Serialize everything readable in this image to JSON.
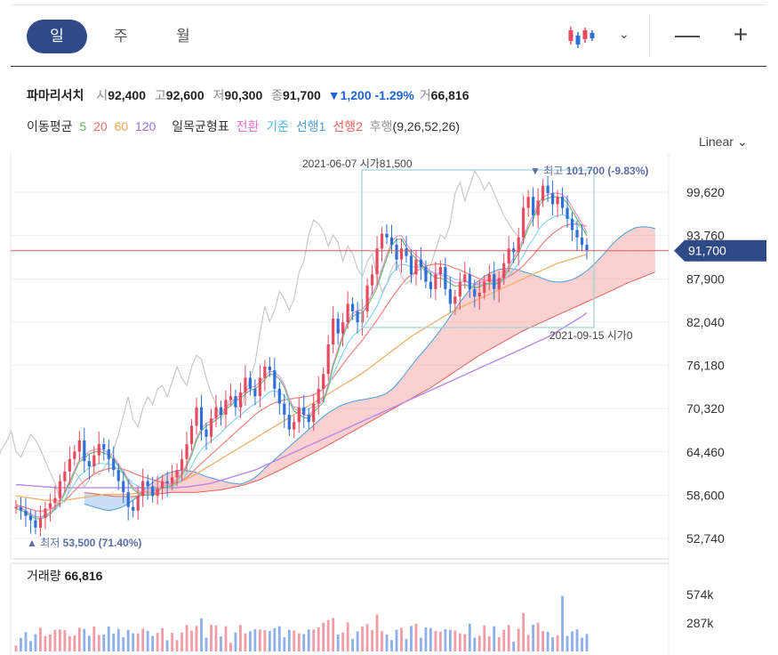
{
  "periods": [
    {
      "label": "일",
      "active": true
    },
    {
      "label": "주",
      "active": false
    },
    {
      "label": "월",
      "active": false
    }
  ],
  "zoom": {
    "minus": "—",
    "plus": "+"
  },
  "stock": {
    "name": "파마리서치",
    "open_label": "시",
    "open": "92,400",
    "high_label": "고",
    "high": "92,600",
    "low_label": "저",
    "low": "90,300",
    "close_label": "종",
    "close": "91,700",
    "change": "▼1,200",
    "change_pct": "-1.29%",
    "volume_label": "거",
    "volume": "66,816"
  },
  "indicators": {
    "ma_label": "이동평균",
    "ma": [
      {
        "label": "5",
        "color": "#5cb85c"
      },
      {
        "label": "20",
        "color": "#f07070"
      },
      {
        "label": "60",
        "color": "#f0a050"
      },
      {
        "label": "120",
        "color": "#9b6fe0"
      }
    ],
    "ichimoku_label": "일목균형표",
    "ichimoku": [
      {
        "label": "전환",
        "color": "#e86fd1"
      },
      {
        "label": "기준",
        "color": "#4db8e8"
      },
      {
        "label": "선행1",
        "color": "#4a9ed8"
      },
      {
        "label": "선행2",
        "color": "#e86060"
      },
      {
        "label": "후행",
        "color": "#999999"
      }
    ],
    "params": "(9,26,52,26)"
  },
  "scale_label": "Linear",
  "chart_data": {
    "type": "candlestick",
    "y_ticks": [
      "99,620",
      "93,760",
      "87,900",
      "82,040",
      "76,180",
      "70,320",
      "64,460",
      "58,600",
      "52,740"
    ],
    "y_values": [
      99620,
      93760,
      87900,
      82040,
      76180,
      70320,
      64460,
      58600,
      52740
    ],
    "ylim": [
      50800,
      105700
    ],
    "current_price": "91,700",
    "high_marker": {
      "prefix": "▼ 최고",
      "value": "101,700",
      "pct": "(-9.83%)"
    },
    "low_marker": {
      "prefix": "▲ 최저",
      "value": "53,500",
      "pct": "(71.40%)"
    },
    "range_start": "2021-06-07 시가81,500",
    "range_end": "2021-09-15 시가0",
    "closes": [
      57000,
      56500,
      55800,
      55200,
      54200,
      55500,
      56800,
      57500,
      58200,
      60500,
      61800,
      63500,
      64500,
      66000,
      63200,
      62500,
      64000,
      65500,
      64800,
      63500,
      62000,
      60500,
      59000,
      57000,
      56500,
      58500,
      60500,
      59800,
      58500,
      59500,
      60500,
      60200,
      61000,
      62000,
      63500,
      65500,
      68000,
      70500,
      67500,
      66500,
      69000,
      70500,
      69500,
      71500,
      72000,
      70500,
      72500,
      74500,
      73000,
      72000,
      74500,
      76000,
      75500,
      73000,
      71000,
      69500,
      67500,
      68500,
      70500,
      69500,
      68500,
      71000,
      73000,
      75000,
      79000,
      82500,
      80500,
      82000,
      84500,
      83500,
      82000,
      83500,
      87000,
      88500,
      92000,
      94000,
      93500,
      92500,
      90500,
      92000,
      91000,
      88500,
      90500,
      89500,
      87500,
      86500,
      88500,
      89500,
      86500,
      84500,
      85500,
      87500,
      88500,
      86500,
      85500,
      86000,
      87500,
      88500,
      86500,
      88000,
      90000,
      92000,
      91500,
      93500,
      97500,
      99000,
      96500,
      98500,
      100500,
      99500,
      98000,
      99000,
      97500,
      96000,
      94500,
      93500,
      92500,
      91700
    ],
    "ma5": [
      56800,
      56600,
      56200,
      55800,
      55400,
      55400,
      55600,
      56000,
      56800,
      57700,
      58800,
      60300,
      61700,
      63100,
      63600,
      64200,
      64400,
      64600,
      64300,
      64000,
      63500,
      62500,
      61600,
      60400,
      59400,
      58900,
      58700,
      58600,
      58700,
      59100,
      59600,
      59700,
      59900,
      60500,
      61300,
      62500,
      64000,
      66000,
      67300,
      68000,
      68300,
      68800,
      69300,
      70200,
      70700,
      71400,
      71700,
      72300,
      72800,
      73000,
      73500,
      74300,
      75000,
      74900,
      74300,
      73200,
      71300,
      70000,
      69600,
      69100,
      69000,
      69800,
      70500,
      71200,
      73200,
      76000,
      78000,
      80000,
      81700,
      82800,
      83200,
      83300,
      84200,
      85400,
      86700,
      88800,
      90700,
      92400,
      93200,
      93300,
      92200,
      91300,
      90600,
      90100,
      89100,
      88500,
      88000,
      88000,
      87700,
      87300,
      86900,
      87000,
      87100,
      86900,
      86700,
      86800,
      87200,
      87300,
      87300,
      87300,
      88000,
      89200,
      90300,
      91400,
      93000,
      94800,
      96000,
      97500,
      98500,
      98800,
      99000,
      99000,
      98800,
      98200,
      97100,
      96000,
      94900,
      93700
    ],
    "ma20": [
      57300,
      57100,
      56900,
      56700,
      56500,
      56400,
      56500,
      56700,
      57000,
      57400,
      57900,
      58500,
      59200,
      59900,
      60500,
      61000,
      61400,
      61800,
      62000,
      62200,
      62300,
      62200,
      62100,
      61900,
      61600,
      61300,
      61100,
      60900,
      60700,
      60500,
      60300,
      60200,
      60100,
      60300,
      60600,
      61000,
      61600,
      62300,
      62900,
      63500,
      64100,
      64700,
      65300,
      65900,
      66500,
      67100,
      67700,
      68300,
      68900,
      69500,
      70000,
      70400,
      70800,
      71100,
      71300,
      71500,
      71600,
      71700,
      71800,
      71900,
      72000,
      72200,
      72500,
      73000,
      73700,
      74500,
      75400,
      76300,
      77200,
      78000,
      78800,
      79600,
      80500,
      81400,
      82300,
      83300,
      84300,
      85300,
      86200,
      87100,
      87900,
      88400,
      88900,
      89300,
      89600,
      89800,
      89900,
      89900,
      89800,
      89600,
      89300,
      89100,
      88800,
      88500,
      88200,
      87900,
      87700,
      87600,
      87600,
      87700,
      87900,
      88200,
      88600,
      89100,
      89700,
      90400,
      91100,
      91900,
      92700,
      93400,
      94000,
      94500,
      94900,
      95200,
      95300,
      95300,
      95200,
      95000
    ],
    "ma60": [
      58500,
      58400,
      58300,
      58200,
      58100,
      58000,
      57900,
      57900,
      57900,
      57900,
      57900,
      58000,
      58100,
      58200,
      58300,
      58400,
      58500,
      58600,
      58700,
      58700,
      58700,
      58700,
      58700,
      58700,
      58800,
      58900,
      59000,
      59100,
      59200,
      59400,
      59600,
      59800,
      60000,
      60200,
      60500,
      60800,
      61100,
      61500,
      61900,
      62300,
      62700,
      63100,
      63500,
      63900,
      64300,
      64700,
      65100,
      65500,
      65900,
      66300,
      66700,
      67100,
      67500,
      67900,
      68300,
      68700,
      69100,
      69500,
      69900,
      70300,
      70700,
      71100,
      71500,
      71900,
      72300,
      72700,
      73100,
      73500,
      73900,
      74300,
      74700,
      75100,
      75600,
      76100,
      76600,
      77100,
      77600,
      78100,
      78600,
      79100,
      79600,
      80100,
      80500,
      80900,
      81300,
      81700,
      82100,
      82500,
      82900,
      83300,
      83700,
      84000,
      84300,
      84600,
      84900,
      85200,
      85500,
      85800,
      86100,
      86400,
      86700,
      87000,
      87300,
      87600,
      87900,
      88200,
      88500,
      88800,
      89100,
      89400,
      89700,
      90000,
      90200,
      90400,
      90600,
      90800,
      91000,
      91200
    ],
    "ma120": [
      60000,
      60000,
      59900,
      59900,
      59800,
      59800,
      59700,
      59700,
      59600,
      59600,
      59600,
      59600,
      59600,
      59600,
      59600,
      59600,
      59600,
      59600,
      59600,
      59600,
      59600,
      59600,
      59600,
      59600,
      59600,
      59600,
      59600,
      59600,
      59600,
      59600,
      59600,
      59600,
      59600,
      59600,
      59700,
      59700,
      59800,
      59900,
      60000,
      60100,
      60200,
      60400,
      60600,
      60800,
      61000,
      61200,
      61400,
      61600,
      61800,
      62000,
      62300,
      62600,
      62900,
      63200,
      63500,
      63800,
      64100,
      64400,
      64700,
      65000,
      65300,
      65600,
      65900,
      66200,
      66500,
      66800,
      67100,
      67400,
      67700,
      68000,
      68300,
      68600,
      68900,
      69200,
      69500,
      69800,
      70100,
      70400,
      70700,
      71000,
      71300,
      71600,
      71900,
      72200,
      72500,
      72800,
      73100,
      73400,
      73700,
      74000,
      74300,
      74600,
      74900,
      75200,
      75500,
      75800,
      76100,
      76400,
      76700,
      77000,
      77300,
      77600,
      77900,
      78200,
      78500,
      78800,
      79100,
      79400,
      79700,
      80000,
      80400,
      80800,
      81200,
      81600,
      82000,
      82400,
      82800,
      83300
    ],
    "volume_label": "거래량",
    "volume_value": "66,816",
    "volume_ticks": [
      "574k",
      "287k"
    ]
  }
}
